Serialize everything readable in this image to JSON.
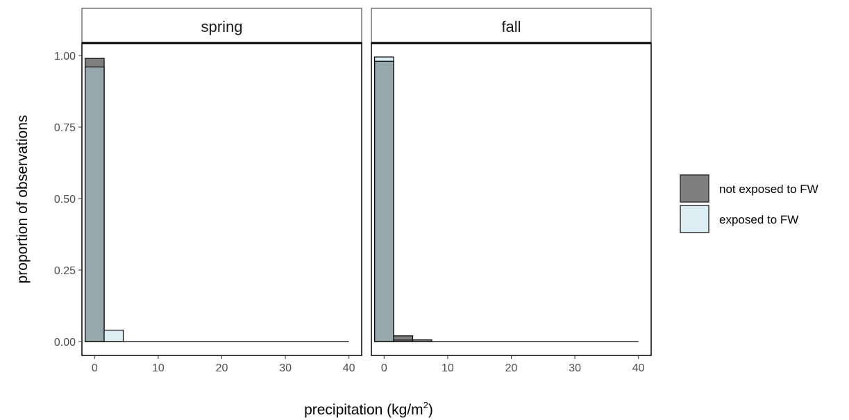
{
  "chart_data": {
    "type": "bar",
    "subtype": "faceted-histogram",
    "xlabel_text": "precipitation (kg",
    "xlabel_slash": "/",
    "xlabel_unit": "m",
    "xlabel_superscript": "2",
    "xlabel_close": ")",
    "ylabel": "proportion of observations",
    "xlim": [
      -2,
      42
    ],
    "ylim": [
      0,
      1.05
    ],
    "x_ticks": [
      0,
      10,
      20,
      30,
      40
    ],
    "x_tick_labels": [
      "0",
      "10",
      "20",
      "30",
      "40"
    ],
    "y_ticks": [
      0,
      0.25,
      0.5,
      0.75,
      1.0
    ],
    "y_tick_labels": [
      "0.00",
      "0.25",
      "0.50",
      "0.75",
      "1.00"
    ],
    "bin_width": 3,
    "bin_starts": [
      -1.5,
      1.5,
      4.5,
      7.5,
      10.5,
      13.5,
      16.5,
      19.5,
      22.5,
      25.5,
      28.5,
      31.5,
      34.5,
      37.5
    ],
    "legend": {
      "position": "right",
      "entries": [
        {
          "label": "not exposed to FW",
          "color": "#7f7f7f"
        },
        {
          "label": "exposed to FW",
          "color": "#dcedf4"
        }
      ]
    },
    "overlap_color": "#96a8ae",
    "panels": [
      {
        "strip": "spring",
        "series": [
          {
            "name": "not exposed to FW",
            "values": [
              0.99,
              0.0,
              0,
              0,
              0,
              0,
              0,
              0,
              0,
              0,
              0,
              0,
              0,
              0
            ]
          },
          {
            "name": "exposed to FW",
            "values": [
              0.96,
              0.04,
              0,
              0,
              0,
              0,
              0,
              0,
              0,
              0,
              0,
              0,
              0,
              0
            ]
          }
        ]
      },
      {
        "strip": "fall",
        "series": [
          {
            "name": "not exposed to FW",
            "values": [
              0.98,
              0.02,
              0.006,
              0,
              0,
              0,
              0,
              0,
              0,
              0,
              0,
              0,
              0,
              0
            ]
          },
          {
            "name": "exposed to FW",
            "values": [
              0.995,
              0.005,
              0,
              0,
              0,
              0,
              0,
              0,
              0,
              0,
              0,
              0,
              0,
              0
            ]
          }
        ]
      }
    ]
  }
}
